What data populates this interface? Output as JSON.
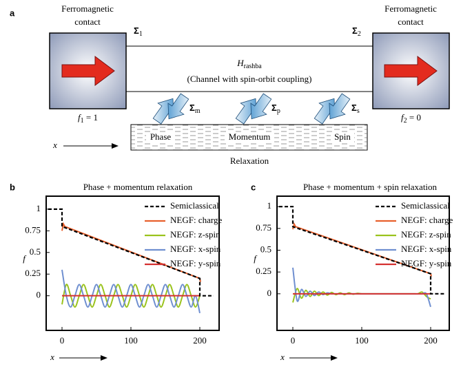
{
  "panel_a": {
    "label": "a",
    "left_contact": {
      "title_lines": [
        "Ferromagnetic",
        "contact"
      ],
      "sigma": {
        "symbol": "Σ",
        "sub": "1"
      },
      "f": {
        "var": "f",
        "sub": "1",
        "eq": " = 1"
      }
    },
    "right_contact": {
      "title_lines": [
        "Ferromagnetic",
        "contact"
      ],
      "sigma": {
        "symbol": "Σ",
        "sub": "2"
      },
      "f": {
        "var": "f",
        "sub": "2",
        "eq": " = 0"
      }
    },
    "channel": {
      "h": {
        "symbol": "H",
        "sub": "rashba"
      },
      "caption": "(Channel with spin-orbit coupling)"
    },
    "sigmas": [
      {
        "symbol": "Σ",
        "sub": "m"
      },
      {
        "symbol": "Σ",
        "sub": "p"
      },
      {
        "symbol": "Σ",
        "sub": "s"
      }
    ],
    "relaxation": {
      "items": [
        "Phase",
        "Momentum",
        "Spin"
      ],
      "label": "Relaxation"
    },
    "x_label": "x"
  },
  "chart_data": [
    {
      "type": "line",
      "panel_label": "b",
      "title": "Phase + momentum relaxation",
      "xlabel": "x",
      "ylabel": "f",
      "xlim": [
        -23,
        228
      ],
      "ylim": [
        -0.4,
        1.15
      ],
      "xticks": [
        0,
        100,
        200
      ],
      "yticks": [
        0,
        0.25,
        0.5,
        0.75,
        1
      ],
      "legend": "upper right",
      "series": [
        {
          "name": "Semiclassical",
          "color": "#000000",
          "linestyle": "dashed",
          "x": [
            -20,
            0,
            0,
            200,
            200,
            220
          ],
          "values": [
            1,
            1,
            0.8,
            0.2,
            0,
            0
          ]
        },
        {
          "name": "NEGF: charge",
          "color": "#e8602c",
          "linestyle": "solid",
          "x": [
            0,
            2,
            4,
            200,
            201
          ],
          "values": [
            0.75,
            0.83,
            0.8,
            0.2,
            0.16
          ]
        },
        {
          "name": "NEGF: z-spin",
          "color": "#9ac31c",
          "linestyle": "solid",
          "x": [
            0,
            6.25,
            12.5,
            18.75,
            25,
            31.25,
            37.5,
            43.75,
            50,
            56.25,
            62.5,
            68.75,
            75,
            81.25,
            87.5,
            93.75,
            100,
            106.25,
            112.5,
            118.75,
            125,
            131.25,
            137.5,
            143.75,
            150,
            156.25,
            162.5,
            168.75,
            175,
            181.25,
            187.5,
            193.75,
            200
          ],
          "values": [
            -0.1,
            0.13,
            0,
            -0.13,
            0,
            0.13,
            0,
            -0.13,
            0,
            0.13,
            0,
            -0.13,
            0,
            0.13,
            0,
            -0.13,
            0,
            0.13,
            0,
            -0.13,
            0,
            0.13,
            0,
            -0.13,
            0,
            0.13,
            0,
            -0.13,
            0,
            0.13,
            0,
            -0.13,
            0
          ]
        },
        {
          "name": "NEGF: x-spin",
          "color": "#6f8fd0",
          "linestyle": "solid",
          "x": [
            0,
            6.25,
            12.5,
            18.75,
            25,
            31.25,
            37.5,
            43.75,
            50,
            56.25,
            62.5,
            68.75,
            75,
            81.25,
            87.5,
            93.75,
            100,
            106.25,
            112.5,
            118.75,
            125,
            131.25,
            137.5,
            143.75,
            150,
            156.25,
            162.5,
            168.75,
            175,
            181.25,
            187.5,
            193.75,
            200
          ],
          "values": [
            0.3,
            0,
            -0.13,
            0,
            0.13,
            0,
            -0.13,
            0,
            0.13,
            0,
            -0.13,
            0,
            0.13,
            0,
            -0.13,
            0,
            0.13,
            0,
            -0.13,
            0,
            0.13,
            0,
            -0.13,
            0,
            0.13,
            0,
            -0.13,
            0,
            0.13,
            0,
            -0.13,
            0,
            -0.2
          ]
        },
        {
          "name": "NEGF: y-spin",
          "color": "#d43030",
          "linestyle": "solid",
          "x": [
            0,
            200
          ],
          "values": [
            0,
            0
          ]
        }
      ]
    },
    {
      "type": "line",
      "panel_label": "c",
      "title": "Phase + momentum + spin relaxation",
      "xlabel": "x",
      "ylabel": "f",
      "xlim": [
        -23,
        227
      ],
      "ylim": [
        -0.42,
        1.12
      ],
      "xticks": [
        0,
        100,
        200
      ],
      "yticks": [
        0,
        0.25,
        0.5,
        0.75,
        1
      ],
      "legend": "upper right",
      "series": [
        {
          "name": "Semiclassical",
          "color": "#000000",
          "linestyle": "dashed",
          "x": [
            -20,
            0,
            0,
            200,
            200,
            220
          ],
          "values": [
            1,
            1,
            0.77,
            0.23,
            0,
            0
          ]
        },
        {
          "name": "NEGF: charge",
          "color": "#e8602c",
          "linestyle": "solid",
          "x": [
            0,
            2,
            4,
            200,
            201
          ],
          "values": [
            0.74,
            0.8,
            0.77,
            0.23,
            0.2
          ]
        },
        {
          "name": "NEGF: z-spin",
          "color": "#9ac31c",
          "linestyle": "solid",
          "x": [
            0,
            6.25,
            12.5,
            18.75,
            25,
            31.25,
            37.5,
            43.75,
            50,
            56.25,
            62.5,
            68.75,
            75,
            81.25,
            87.5,
            93.75,
            100,
            106.25,
            112.5,
            118.75,
            125,
            131.25,
            137.5,
            143.75,
            150,
            156.25,
            162.5,
            168.75,
            175,
            181.25,
            187.5,
            193.75,
            200
          ],
          "values": [
            -0.1,
            0.06,
            -0.05,
            0.04,
            -0.03,
            0.03,
            -0.02,
            0.02,
            -0.015,
            0.015,
            -0.01,
            0.01,
            -0.01,
            0.01,
            -0.005,
            0.005,
            0,
            0,
            0,
            0,
            0,
            0,
            0,
            0,
            0,
            0,
            0,
            0,
            0,
            0,
            0.02,
            -0.03,
            -0.06
          ]
        },
        {
          "name": "NEGF: x-spin",
          "color": "#6f8fd0",
          "linestyle": "solid",
          "x": [
            0,
            6.25,
            12.5,
            18.75,
            25,
            31.25,
            37.5,
            43.75,
            50,
            56.25,
            62.5,
            68.75,
            75,
            81.25,
            87.5,
            93.75,
            100,
            106.25,
            112.5,
            118.75,
            125,
            131.25,
            137.5,
            143.75,
            150,
            156.25,
            162.5,
            168.75,
            175,
            181.25,
            187.5,
            193.75,
            200
          ],
          "values": [
            0.3,
            -0.08,
            0.05,
            -0.03,
            0.03,
            -0.02,
            0.02,
            -0.01,
            0.01,
            0,
            0,
            0,
            0,
            0,
            0,
            0,
            0,
            0,
            0,
            0,
            0,
            0,
            0,
            0,
            0,
            0,
            0,
            0,
            0,
            0,
            0,
            0,
            -0.15
          ]
        },
        {
          "name": "NEGF: y-spin",
          "color": "#d43030",
          "linestyle": "solid",
          "x": [
            0,
            200
          ],
          "values": [
            0,
            0
          ]
        }
      ]
    }
  ]
}
